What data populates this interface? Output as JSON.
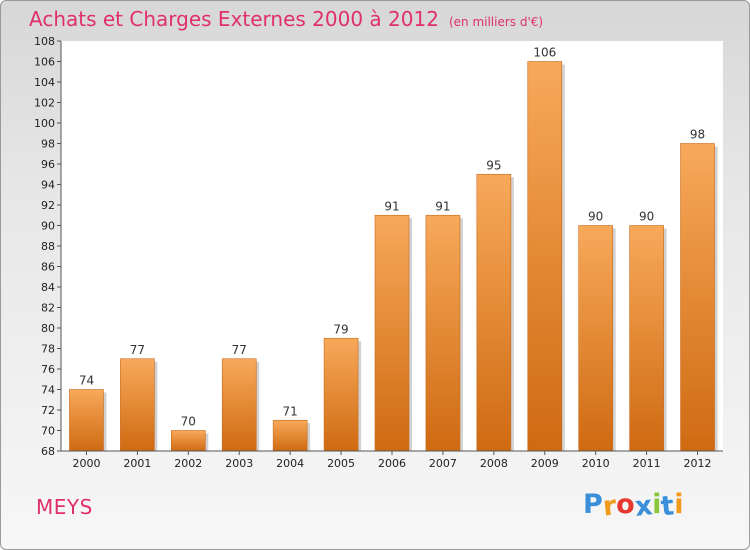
{
  "header": {
    "title": "Achats et Charges Externes 2000 à 2012",
    "unit": "(en milliers d'€)"
  },
  "footer": {
    "commune": "MEYS",
    "logo_letters": [
      "P",
      "r",
      "o",
      "x",
      "i",
      "t",
      "i"
    ],
    "logo_colors": [
      "#3a8fd8",
      "#f39a1e",
      "#e7382f",
      "#3a8fd8",
      "#8cc63f",
      "#3a8fd8",
      "#f39a1e"
    ]
  },
  "chart_data": {
    "type": "bar",
    "title": "Achats et Charges Externes 2000 à 2012",
    "categories": [
      "2000",
      "2001",
      "2002",
      "2003",
      "2004",
      "2005",
      "2006",
      "2007",
      "2008",
      "2009",
      "2010",
      "2011",
      "2012"
    ],
    "values": [
      74,
      77,
      70,
      77,
      71,
      79,
      91,
      91,
      95,
      106,
      90,
      90,
      98
    ],
    "ylim": [
      68,
      108
    ],
    "ytick_step": 2,
    "grid": false,
    "bar_color_top": "#f7a95a",
    "bar_color_bottom": "#cf6a12",
    "plot_bg": "#ffffff"
  }
}
